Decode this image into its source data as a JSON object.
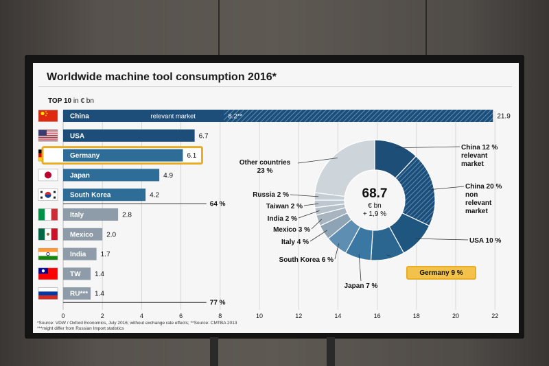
{
  "slide": {
    "title": "Worldwide machine tool consumption 2016*",
    "subtitle_bold": "TOP 10",
    "subtitle_rest": " in € bn",
    "footnote1": "*Source: VDW / Oxford Economics, July 2016; without exchange rate effects; **Source: CMTBA 2013",
    "footnote2": "***might differ from Russian Import statistics"
  },
  "chart_data": [
    {
      "type": "bar",
      "orientation": "horizontal",
      "unit": "€ bn",
      "categories": [
        "China",
        "USA",
        "Germany",
        "Japan",
        "South Korea",
        "Italy",
        "Mexico",
        "India",
        "TW",
        "RU***"
      ],
      "values": [
        21.9,
        6.7,
        6.1,
        4.9,
        4.2,
        2.8,
        2.0,
        1.7,
        1.4,
        1.4
      ],
      "value_labels": [
        "21.9",
        "6.7",
        "6.1",
        "4.9",
        "4.2",
        "2.8",
        "2.0",
        "1.7",
        "1.4",
        "1.4"
      ],
      "flags": [
        "china-flag",
        "usa-flag",
        "germany-flag",
        "japan-flag",
        "south-korea-flag",
        "italy-flag",
        "mexico-flag",
        "india-flag",
        "taiwan-flag",
        "russia-flag"
      ],
      "highlight": "Germany",
      "china_split": {
        "relevant_value": 8.2,
        "relevant_label": "relevant market",
        "relevant_value_label": "8.2**"
      },
      "xlim": [
        0,
        22
      ],
      "xticks": [
        0,
        2,
        4,
        6,
        8,
        10,
        12,
        14,
        16,
        18,
        20,
        22
      ],
      "cumulative_markers": [
        {
          "after_category": "South Korea",
          "label": "64 %"
        },
        {
          "after_category": "RU***",
          "label": "77 %"
        }
      ],
      "colors": {
        "dark": "#1d4e7a",
        "medium": "#2f6d99",
        "light": "#8d9ca8",
        "germany_border": "#e8ad24",
        "hatch": "#5e8fb6"
      }
    },
    {
      "type": "pie",
      "style": "donut",
      "center_value": "68.7",
      "center_unit": "€ bn",
      "center_change": "+ 1,9 %",
      "slices": [
        {
          "name": "China",
          "value": 12,
          "label_lines": [
            "China 12 %",
            "relevant",
            "market"
          ],
          "color": "#1c4e78"
        },
        {
          "name": "China non relevant",
          "value": 20,
          "label_lines": [
            "China 20 %",
            "non",
            "relevant",
            "market"
          ],
          "color": "#2d6a96",
          "hatched": true
        },
        {
          "name": "USA",
          "value": 10,
          "label_lines": [
            "USA 10 %"
          ],
          "color": "#1f5680"
        },
        {
          "name": "Germany",
          "value": 9,
          "label_lines": [
            "Germany 9 %"
          ],
          "color": "#2a6690",
          "highlight": true
        },
        {
          "name": "Japan",
          "value": 7,
          "label_lines": [
            "Japan 7 %"
          ],
          "color": "#3a78a3"
        },
        {
          "name": "South Korea",
          "value": 6,
          "label_lines": [
            "South Korea 6 %"
          ],
          "color": "#5e8fb2"
        },
        {
          "name": "Italy",
          "value": 4,
          "label_lines": [
            "Italy 4 %"
          ],
          "color": "#8ea3b4"
        },
        {
          "name": "Mexico",
          "value": 3,
          "label_lines": [
            "Mexico 3 %"
          ],
          "color": "#a8b5c0"
        },
        {
          "name": "India",
          "value": 2,
          "label_lines": [
            "India 2 %"
          ],
          "color": "#b6c0c9"
        },
        {
          "name": "Taiwan",
          "value": 2,
          "label_lines": [
            "Taiwan 2 %"
          ],
          "color": "#bec7cf"
        },
        {
          "name": "Russia",
          "value": 2,
          "label_lines": [
            "Russia 2 %"
          ],
          "color": "#c5cdd4"
        },
        {
          "name": "Other countries",
          "value": 23,
          "label_lines": [
            "Other countries",
            "23 %"
          ],
          "color": "#cdd4da"
        }
      ]
    }
  ]
}
